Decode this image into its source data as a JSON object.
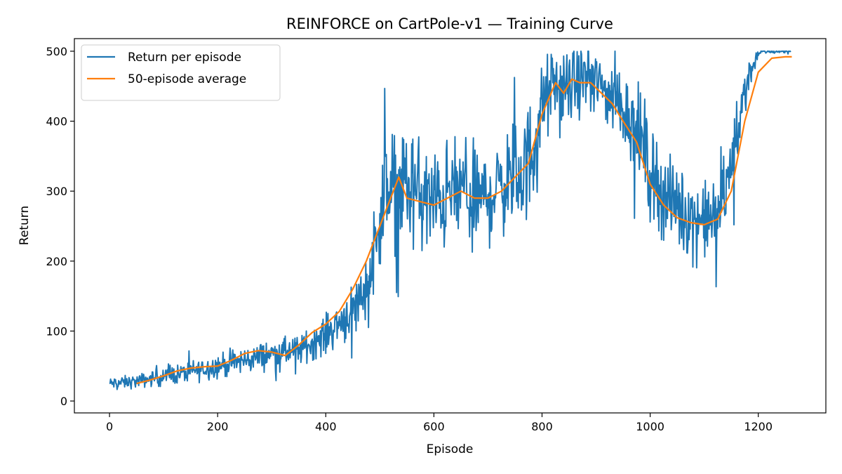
{
  "chart_data": {
    "type": "line",
    "title": "REINFORCE on CartPole-v1 — Training Curve",
    "xlabel": "Episode",
    "ylabel": "Return",
    "xlim": [
      -65,
      1325
    ],
    "ylim": [
      -17,
      518
    ],
    "xticks": [
      0,
      200,
      400,
      600,
      800,
      1000,
      1200
    ],
    "yticks": [
      0,
      100,
      200,
      300,
      400,
      500
    ],
    "grid": false,
    "legend_position": "top-left",
    "series": [
      {
        "name": "Return per episode",
        "color": "#1f77b4",
        "style": "noisy",
        "x": [
          0,
          50,
          100,
          150,
          200,
          250,
          300,
          350,
          400,
          450,
          480,
          500,
          520,
          540,
          560,
          580,
          600,
          620,
          640,
          660,
          680,
          700,
          720,
          740,
          760,
          780,
          800,
          820,
          840,
          860,
          880,
          900,
          920,
          940,
          960,
          980,
          1000,
          1020,
          1040,
          1060,
          1080,
          1100,
          1120,
          1140,
          1160,
          1180,
          1200,
          1220,
          1240,
          1260
        ],
        "y": [
          25,
          28,
          35,
          42,
          50,
          58,
          68,
          72,
          95,
          130,
          170,
          270,
          300,
          310,
          300,
          290,
          280,
          292,
          300,
          302,
          290,
          292,
          305,
          318,
          322,
          350,
          420,
          450,
          440,
          455,
          460,
          455,
          440,
          430,
          410,
          380,
          330,
          300,
          285,
          270,
          262,
          258,
          262,
          300,
          380,
          460,
          498,
          500,
          500,
          500
        ],
        "amplitude": [
          12,
          14,
          18,
          22,
          25,
          28,
          28,
          30,
          40,
          55,
          80,
          110,
          120,
          120,
          120,
          120,
          115,
          110,
          110,
          105,
          100,
          100,
          100,
          110,
          120,
          120,
          90,
          80,
          80,
          70,
          70,
          70,
          70,
          80,
          90,
          100,
          100,
          95,
          90,
          85,
          85,
          80,
          80,
          80,
          70,
          40,
          10,
          5,
          5,
          5
        ]
      },
      {
        "name": "50-episode average",
        "color": "#ff7f0e",
        "x": [
          50,
          75,
          100,
          125,
          150,
          175,
          200,
          225,
          250,
          275,
          300,
          325,
          350,
          375,
          400,
          425,
          450,
          475,
          500,
          525,
          535,
          550,
          575,
          600,
          625,
          650,
          675,
          700,
          725,
          750,
          775,
          800,
          825,
          840,
          855,
          870,
          890,
          910,
          930,
          950,
          975,
          1000,
          1025,
          1050,
          1075,
          1100,
          1125,
          1150,
          1175,
          1200,
          1225,
          1250,
          1262
        ],
        "y": [
          25,
          30,
          36,
          43,
          47,
          49,
          50,
          58,
          68,
          72,
          70,
          65,
          80,
          98,
          110,
          128,
          160,
          200,
          250,
          300,
          320,
          290,
          285,
          280,
          290,
          300,
          290,
          290,
          300,
          320,
          340,
          410,
          455,
          440,
          460,
          455,
          455,
          440,
          425,
          400,
          370,
          310,
          280,
          262,
          255,
          252,
          260,
          300,
          400,
          470,
          490,
          492,
          492
        ]
      }
    ]
  }
}
